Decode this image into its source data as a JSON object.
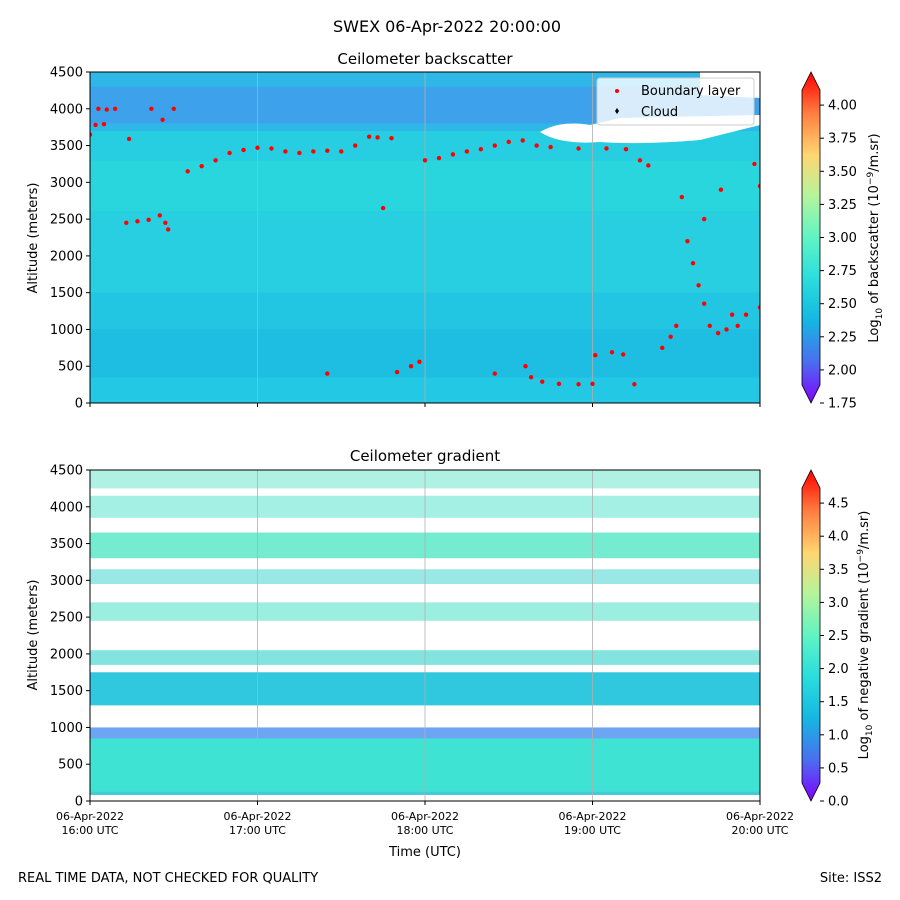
{
  "suptitle": "SWEX 06-Apr-2022 20:00:00",
  "footer_left": "REAL TIME DATA, NOT CHECKED FOR QUALITY",
  "footer_right": "Site: ISS2",
  "colors": {
    "boundary_layer": "#ff0000",
    "cloud": "#000000",
    "missing": "#ffffff",
    "colormap": [
      "#8000ff",
      "#4a6ff0",
      "#15b7e2",
      "#2adddd",
      "#60f4c4",
      "#b4f49c",
      "#ffd670",
      "#ff7e40",
      "#ff0000"
    ]
  },
  "chart_data": [
    {
      "type": "heatmap",
      "title": "Ceilometer backscatter",
      "xlabel": "",
      "ylabel": "Altitude (meters)",
      "x_range": [
        "2022-04-06T16:00:00Z",
        "2022-04-06T20:00:00Z"
      ],
      "xticks": [
        "2022-04-06T16:00:00Z",
        "2022-04-06T17:00:00Z",
        "2022-04-06T18:00:00Z",
        "2022-04-06T19:00:00Z",
        "2022-04-06T20:00:00Z"
      ],
      "xtick_labels": [],
      "ylim": [
        0,
        4500
      ],
      "yticks": [
        0,
        500,
        1000,
        1500,
        2000,
        2500,
        3000,
        3500,
        4000,
        4500
      ],
      "ytick_labels": [
        "0",
        "500",
        "1000",
        "1500",
        "2000",
        "2500",
        "3000",
        "3500",
        "4000",
        "4500"
      ],
      "grid": "vertical at x ticks",
      "colorbar": {
        "label": "Log10 of backscatter (10^-9/m.sr)",
        "range": [
          1.75,
          4.25
        ],
        "ticks": [
          1.75,
          2.0,
          2.25,
          2.5,
          2.75,
          3.0,
          3.25,
          3.5,
          3.75,
          4.0
        ],
        "tick_labels": [
          "1.75",
          "2.00",
          "2.25",
          "2.50",
          "2.75",
          "3.00",
          "3.25",
          "3.50",
          "3.75",
          "4.00"
        ],
        "extend": "both"
      },
      "legend": {
        "placement": "upper right",
        "entries": [
          {
            "label": "Boundary layer",
            "marker": "dot",
            "color": "#ff0000"
          },
          {
            "label": "Cloud",
            "marker": "diamond",
            "color": "#000000"
          }
        ]
      },
      "boundary_layer_points": [
        [
          "2022-04-06T16:00:00Z",
          3650
        ],
        [
          "2022-04-06T16:02:00Z",
          3780
        ],
        [
          "2022-04-06T16:05:00Z",
          3790
        ],
        [
          "2022-04-06T16:03:00Z",
          4000
        ],
        [
          "2022-04-06T16:06:00Z",
          3990
        ],
        [
          "2022-04-06T16:09:00Z",
          4000
        ],
        [
          "2022-04-06T16:13:00Z",
          2450
        ],
        [
          "2022-04-06T16:17:00Z",
          2470
        ],
        [
          "2022-04-06T16:21:00Z",
          2490
        ],
        [
          "2022-04-06T16:25:00Z",
          2550
        ],
        [
          "2022-04-06T16:27:00Z",
          2450
        ],
        [
          "2022-04-06T16:28:00Z",
          2360
        ],
        [
          "2022-04-06T16:14:00Z",
          3590
        ],
        [
          "2022-04-06T16:22:00Z",
          4000
        ],
        [
          "2022-04-06T16:26:00Z",
          3850
        ],
        [
          "2022-04-06T16:30:00Z",
          4000
        ],
        [
          "2022-04-06T16:35:00Z",
          3150
        ],
        [
          "2022-04-06T16:40:00Z",
          3220
        ],
        [
          "2022-04-06T16:45:00Z",
          3300
        ],
        [
          "2022-04-06T16:50:00Z",
          3400
        ],
        [
          "2022-04-06T16:55:00Z",
          3440
        ],
        [
          "2022-04-06T17:00:00Z",
          3470
        ],
        [
          "2022-04-06T17:05:00Z",
          3460
        ],
        [
          "2022-04-06T17:10:00Z",
          3420
        ],
        [
          "2022-04-06T17:15:00Z",
          3400
        ],
        [
          "2022-04-06T17:20:00Z",
          3420
        ],
        [
          "2022-04-06T17:25:00Z",
          3430
        ],
        [
          "2022-04-06T17:30:00Z",
          3420
        ],
        [
          "2022-04-06T17:35:00Z",
          3500
        ],
        [
          "2022-04-06T17:40:00Z",
          3620
        ],
        [
          "2022-04-06T17:43:00Z",
          3610
        ],
        [
          "2022-04-06T17:45:00Z",
          2650
        ],
        [
          "2022-04-06T17:48:00Z",
          3600
        ],
        [
          "2022-04-06T17:25:00Z",
          400
        ],
        [
          "2022-04-06T17:50:00Z",
          420
        ],
        [
          "2022-04-06T17:55:00Z",
          500
        ],
        [
          "2022-04-06T17:58:00Z",
          560
        ],
        [
          "2022-04-06T18:00:00Z",
          3300
        ],
        [
          "2022-04-06T18:05:00Z",
          3330
        ],
        [
          "2022-04-06T18:10:00Z",
          3380
        ],
        [
          "2022-04-06T18:15:00Z",
          3420
        ],
        [
          "2022-04-06T18:20:00Z",
          3450
        ],
        [
          "2022-04-06T18:25:00Z",
          3500
        ],
        [
          "2022-04-06T18:30:00Z",
          3550
        ],
        [
          "2022-04-06T18:35:00Z",
          3570
        ],
        [
          "2022-04-06T18:40:00Z",
          3500
        ],
        [
          "2022-04-06T18:25:00Z",
          400
        ],
        [
          "2022-04-06T18:36:00Z",
          500
        ],
        [
          "2022-04-06T18:38:00Z",
          350
        ],
        [
          "2022-04-06T18:42:00Z",
          290
        ],
        [
          "2022-04-06T18:48:00Z",
          260
        ],
        [
          "2022-04-06T18:55:00Z",
          255
        ],
        [
          "2022-04-06T19:00:00Z",
          260
        ],
        [
          "2022-04-06T18:45:00Z",
          3480
        ],
        [
          "2022-04-06T18:55:00Z",
          3460
        ],
        [
          "2022-04-06T19:05:00Z",
          3460
        ],
        [
          "2022-04-06T19:12:00Z",
          3450
        ],
        [
          "2022-04-06T19:17:00Z",
          3300
        ],
        [
          "2022-04-06T19:20:00Z",
          3230
        ],
        [
          "2022-04-06T19:01:00Z",
          650
        ],
        [
          "2022-04-06T19:07:00Z",
          690
        ],
        [
          "2022-04-06T19:11:00Z",
          660
        ],
        [
          "2022-04-06T19:15:00Z",
          255
        ],
        [
          "2022-04-06T19:25:00Z",
          750
        ],
        [
          "2022-04-06T19:28:00Z",
          900
        ],
        [
          "2022-04-06T19:30:00Z",
          1050
        ],
        [
          "2022-04-06T19:32:00Z",
          2800
        ],
        [
          "2022-04-06T19:34:00Z",
          2200
        ],
        [
          "2022-04-06T19:36:00Z",
          1900
        ],
        [
          "2022-04-06T19:38:00Z",
          1600
        ],
        [
          "2022-04-06T19:40:00Z",
          1350
        ],
        [
          "2022-04-06T19:42:00Z",
          1050
        ],
        [
          "2022-04-06T19:45:00Z",
          950
        ],
        [
          "2022-04-06T19:48:00Z",
          1000
        ],
        [
          "2022-04-06T19:50:00Z",
          1200
        ],
        [
          "2022-04-06T19:52:00Z",
          1050
        ],
        [
          "2022-04-06T19:55:00Z",
          1200
        ],
        [
          "2022-04-06T20:00:00Z",
          1300
        ],
        [
          "2022-04-06T19:40:00Z",
          2500
        ],
        [
          "2022-04-06T19:46:00Z",
          2900
        ],
        [
          "2022-04-06T19:58:00Z",
          3250
        ],
        [
          "2022-04-06T20:00:00Z",
          2950
        ]
      ]
    },
    {
      "type": "heatmap",
      "title": "Ceilometer gradient",
      "xlabel": "Time (UTC)",
      "ylabel": "Altitude (meters)",
      "x_range": [
        "2022-04-06T16:00:00Z",
        "2022-04-06T20:00:00Z"
      ],
      "xticks": [
        "2022-04-06T16:00:00Z",
        "2022-04-06T17:00:00Z",
        "2022-04-06T18:00:00Z",
        "2022-04-06T19:00:00Z",
        "2022-04-06T20:00:00Z"
      ],
      "xtick_labels": [
        [
          "06-Apr-2022",
          "16:00 UTC"
        ],
        [
          "06-Apr-2022",
          "17:00 UTC"
        ],
        [
          "06-Apr-2022",
          "18:00 UTC"
        ],
        [
          "06-Apr-2022",
          "19:00 UTC"
        ],
        [
          "06-Apr-2022",
          "20:00 UTC"
        ]
      ],
      "ylim": [
        0,
        4500
      ],
      "yticks": [
        0,
        500,
        1000,
        1500,
        2000,
        2500,
        3000,
        3500,
        4000,
        4500
      ],
      "ytick_labels": [
        "0",
        "500",
        "1000",
        "1500",
        "2000",
        "2500",
        "3000",
        "3500",
        "4000",
        "4500"
      ],
      "grid": "vertical at x ticks",
      "colorbar": {
        "label": "Log10 of negative gradient (10^-9/m.sr)",
        "range": [
          0,
          5
        ],
        "ticks": [
          0.0,
          0.5,
          1.0,
          1.5,
          2.0,
          2.5,
          3.0,
          3.5,
          4.0,
          4.5
        ],
        "tick_labels": [
          "0.0",
          "0.5",
          "1.0",
          "1.5",
          "2.0",
          "2.5",
          "3.0",
          "3.5",
          "4.0",
          "4.5"
        ],
        "extend": "both"
      }
    }
  ]
}
